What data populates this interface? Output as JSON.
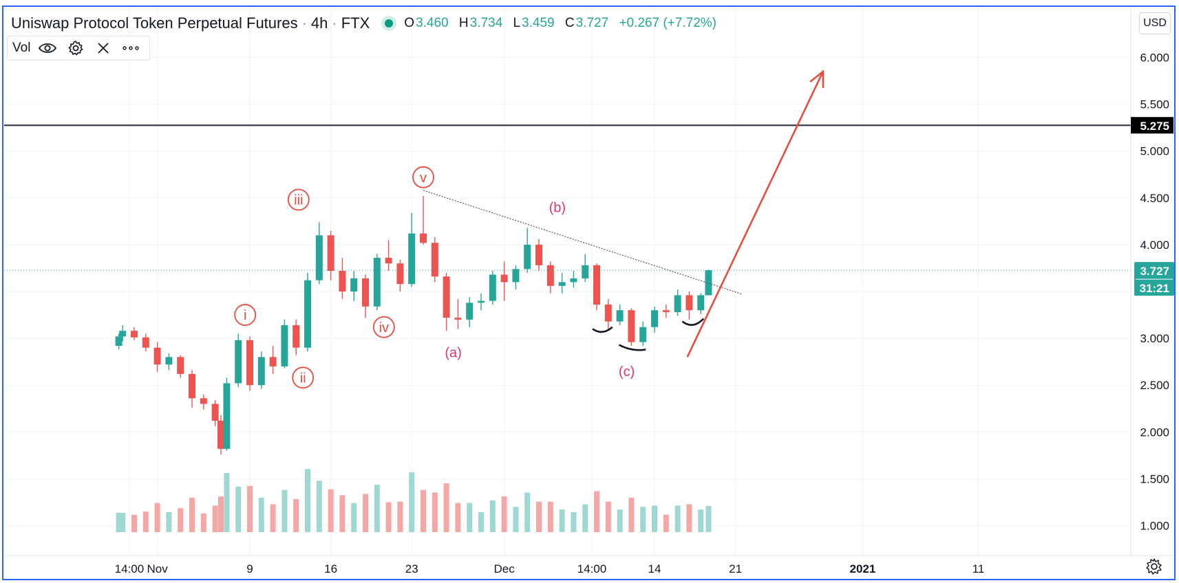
{
  "header": {
    "symbol": "Uniswap Protocol Token Perpetual Futures",
    "interval": "4h",
    "exchange": "FTX",
    "ohlc": {
      "o": "3.460",
      "h": "3.734",
      "l": "3.459",
      "c": "3.727",
      "change": "+0.267 (+7.72%)"
    }
  },
  "volume_legend": {
    "label": "Vol"
  },
  "currency_button": "USD",
  "price_badges": {
    "level": "5.275",
    "last": "3.727",
    "countdown": "31:21"
  },
  "colors": {
    "up": "#26a69a",
    "down": "#ef5350",
    "vol_up": "#9ed8d2",
    "vol_down": "#f5a7a5",
    "annotation": "#e84c3d",
    "wave_label": "#e0356e",
    "frame": "#2a62ff"
  },
  "chart_data": {
    "type": "candlestick",
    "ylim": [
      0.5,
      6.3
    ],
    "y_ticks": [
      "6.000",
      "5.500",
      "5.000",
      "4.500",
      "4.000",
      "3.500",
      "3.000",
      "2.500",
      "2.000",
      "1.500",
      "1.000"
    ],
    "x_ticks": [
      "14:00",
      "Nov",
      "9",
      "16",
      "23",
      "Dec",
      "14:00",
      "14",
      "21",
      "2021",
      "11"
    ],
    "horizontal_level": 5.275,
    "last_price": 3.727,
    "trendline": {
      "from": [
        "Nov 24",
        4.58
      ],
      "to": [
        "Dec 19",
        3.46
      ]
    },
    "wave_labels": [
      {
        "text": "i",
        "circled": true,
        "x": "Nov 8",
        "y": 3.25
      },
      {
        "text": "ii",
        "circled": true,
        "x": "Nov 13",
        "y": 2.58
      },
      {
        "text": "iii",
        "circled": true,
        "x": "Nov 15",
        "y": 4.48
      },
      {
        "text": "iv",
        "circled": true,
        "x": "Nov 20",
        "y": 3.12
      },
      {
        "text": "v",
        "circled": true,
        "x": "Nov 24",
        "y": 4.72
      },
      {
        "text": "(a)",
        "circled": false,
        "x": "Nov 26",
        "y": 2.85
      },
      {
        "text": "(b)",
        "circled": false,
        "x": "Dec 5",
        "y": 4.4
      },
      {
        "text": "(c)",
        "circled": false,
        "x": "Dec 11",
        "y": 2.65
      }
    ],
    "projection_arrow": {
      "from": [
        "Dec 16",
        2.8
      ],
      "to": [
        "Dec 25",
        5.85
      ]
    },
    "ohlc": [
      {
        "t": "Oct 28 16:00",
        "o": 2.92,
        "h": 3.05,
        "l": 2.88,
        "c": 3.02
      },
      {
        "t": "Oct 29",
        "o": 3.02,
        "h": 3.14,
        "l": 2.97,
        "c": 3.08
      },
      {
        "t": "Oct 30",
        "o": 3.08,
        "h": 3.12,
        "l": 2.98,
        "c": 3.01
      },
      {
        "t": "Oct 31",
        "o": 3.01,
        "h": 3.05,
        "l": 2.86,
        "c": 2.9
      },
      {
        "t": "Nov 1",
        "o": 2.9,
        "h": 2.96,
        "l": 2.64,
        "c": 2.72
      },
      {
        "t": "Nov 2",
        "o": 2.72,
        "h": 2.84,
        "l": 2.66,
        "c": 2.8
      },
      {
        "t": "Nov 3",
        "o": 2.8,
        "h": 2.82,
        "l": 2.58,
        "c": 2.62
      },
      {
        "t": "Nov 4",
        "o": 2.62,
        "h": 2.66,
        "l": 2.26,
        "c": 2.36
      },
      {
        "t": "Nov 5",
        "o": 2.36,
        "h": 2.4,
        "l": 2.24,
        "c": 2.3
      },
      {
        "t": "Nov 6",
        "o": 2.3,
        "h": 2.34,
        "l": 2.06,
        "c": 2.12
      },
      {
        "t": "Nov 6 12:00",
        "o": 2.12,
        "h": 2.18,
        "l": 1.76,
        "c": 1.82
      },
      {
        "t": "Nov 7",
        "o": 1.82,
        "h": 2.58,
        "l": 1.8,
        "c": 2.52
      },
      {
        "t": "Nov 8",
        "o": 2.52,
        "h": 3.05,
        "l": 2.48,
        "c": 2.98
      },
      {
        "t": "Nov 9",
        "o": 2.98,
        "h": 3.02,
        "l": 2.44,
        "c": 2.5
      },
      {
        "t": "Nov 10",
        "o": 2.5,
        "h": 2.86,
        "l": 2.46,
        "c": 2.8
      },
      {
        "t": "Nov 11",
        "o": 2.8,
        "h": 2.92,
        "l": 2.62,
        "c": 2.7
      },
      {
        "t": "Nov 12",
        "o": 2.7,
        "h": 3.2,
        "l": 2.68,
        "c": 3.14
      },
      {
        "t": "Nov 13",
        "o": 3.14,
        "h": 3.2,
        "l": 2.82,
        "c": 2.9
      },
      {
        "t": "Nov 14",
        "o": 2.9,
        "h": 3.7,
        "l": 2.86,
        "c": 3.62
      },
      {
        "t": "Nov 15",
        "o": 3.62,
        "h": 4.24,
        "l": 3.58,
        "c": 4.1
      },
      {
        "t": "Nov 16",
        "o": 4.1,
        "h": 4.15,
        "l": 3.62,
        "c": 3.72
      },
      {
        "t": "Nov 17",
        "o": 3.72,
        "h": 3.86,
        "l": 3.42,
        "c": 3.5
      },
      {
        "t": "Nov 18",
        "o": 3.5,
        "h": 3.72,
        "l": 3.4,
        "c": 3.64
      },
      {
        "t": "Nov 19",
        "o": 3.64,
        "h": 3.68,
        "l": 3.22,
        "c": 3.34
      },
      {
        "t": "Nov 20",
        "o": 3.34,
        "h": 3.9,
        "l": 3.3,
        "c": 3.86
      },
      {
        "t": "Nov 21",
        "o": 3.86,
        "h": 4.05,
        "l": 3.72,
        "c": 3.8
      },
      {
        "t": "Nov 22",
        "o": 3.8,
        "h": 3.84,
        "l": 3.5,
        "c": 3.58
      },
      {
        "t": "Nov 23",
        "o": 3.58,
        "h": 4.34,
        "l": 3.55,
        "c": 4.12
      },
      {
        "t": "Nov 24",
        "o": 4.12,
        "h": 4.52,
        "l": 4.0,
        "c": 4.02
      },
      {
        "t": "Nov 25",
        "o": 4.02,
        "h": 4.08,
        "l": 3.6,
        "c": 3.66
      },
      {
        "t": "Nov 26",
        "o": 3.66,
        "h": 3.7,
        "l": 3.08,
        "c": 3.22
      },
      {
        "t": "Nov 27",
        "o": 3.22,
        "h": 3.42,
        "l": 3.1,
        "c": 3.2
      },
      {
        "t": "Nov 28",
        "o": 3.2,
        "h": 3.44,
        "l": 3.12,
        "c": 3.38
      },
      {
        "t": "Nov 29",
        "o": 3.38,
        "h": 3.48,
        "l": 3.3,
        "c": 3.4
      },
      {
        "t": "Nov 30",
        "o": 3.4,
        "h": 3.72,
        "l": 3.36,
        "c": 3.68
      },
      {
        "t": "Dec 1",
        "o": 3.68,
        "h": 3.82,
        "l": 3.4,
        "c": 3.6
      },
      {
        "t": "Dec 2",
        "o": 3.6,
        "h": 3.78,
        "l": 3.52,
        "c": 3.74
      },
      {
        "t": "Dec 3",
        "o": 3.74,
        "h": 4.18,
        "l": 3.7,
        "c": 4.0
      },
      {
        "t": "Dec 4",
        "o": 4.0,
        "h": 4.06,
        "l": 3.72,
        "c": 3.78
      },
      {
        "t": "Dec 5",
        "o": 3.78,
        "h": 3.82,
        "l": 3.48,
        "c": 3.56
      },
      {
        "t": "Dec 6",
        "o": 3.56,
        "h": 3.7,
        "l": 3.48,
        "c": 3.6
      },
      {
        "t": "Dec 7",
        "o": 3.6,
        "h": 3.72,
        "l": 3.54,
        "c": 3.64
      },
      {
        "t": "Dec 8",
        "o": 3.64,
        "h": 3.9,
        "l": 3.6,
        "c": 3.78
      },
      {
        "t": "Dec 9",
        "o": 3.78,
        "h": 3.8,
        "l": 3.3,
        "c": 3.36
      },
      {
        "t": "Dec 10",
        "o": 3.36,
        "h": 3.42,
        "l": 3.08,
        "c": 3.18
      },
      {
        "t": "Dec 11",
        "o": 3.18,
        "h": 3.36,
        "l": 3.14,
        "c": 3.3
      },
      {
        "t": "Dec 12",
        "o": 3.3,
        "h": 3.32,
        "l": 2.92,
        "c": 2.96
      },
      {
        "t": "Dec 13",
        "o": 2.96,
        "h": 3.18,
        "l": 2.92,
        "c": 3.12
      },
      {
        "t": "Dec 14",
        "o": 3.12,
        "h": 3.34,
        "l": 3.06,
        "c": 3.3
      },
      {
        "t": "Dec 15",
        "o": 3.3,
        "h": 3.36,
        "l": 3.22,
        "c": 3.28
      },
      {
        "t": "Dec 16",
        "o": 3.28,
        "h": 3.52,
        "l": 3.24,
        "c": 3.46
      },
      {
        "t": "Dec 17",
        "o": 3.46,
        "h": 3.5,
        "l": 3.2,
        "c": 3.3
      },
      {
        "t": "Dec 18",
        "o": 3.3,
        "h": 3.48,
        "l": 3.26,
        "c": 3.46
      },
      {
        "t": "Dec 18 16:00",
        "o": 3.46,
        "h": 3.734,
        "l": 3.459,
        "c": 3.727
      }
    ]
  }
}
